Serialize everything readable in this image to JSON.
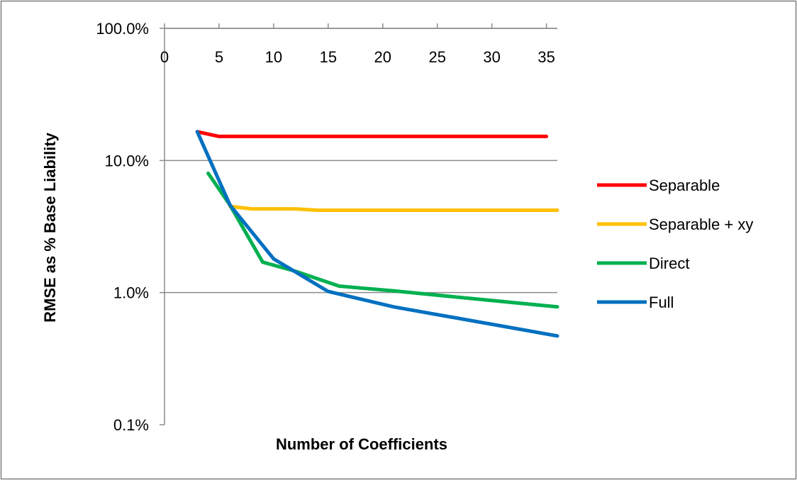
{
  "chart_data": {
    "type": "line",
    "title": "",
    "xlabel": "Number of Coefficients",
    "ylabel": "RMSE as % Base Liability",
    "xlim": [
      0,
      36
    ],
    "x_ticks": [
      0,
      5,
      10,
      15,
      20,
      25,
      30,
      35
    ],
    "x_tick_labels": [
      "0",
      "5",
      "10",
      "15",
      "20",
      "25",
      "30",
      "35"
    ],
    "x_axis_position": "top",
    "yscale": "log",
    "ylim": [
      0.1,
      100
    ],
    "y_ticks": [
      0.1,
      1,
      10,
      100
    ],
    "y_tick_labels": [
      "0.1%",
      "1.0%",
      "10.0%",
      "100.0%"
    ],
    "grid": "horizontal major",
    "legend_position": "right",
    "series": [
      {
        "name": "Separable",
        "color": "#ff0000",
        "points": [
          [
            3,
            16.5
          ],
          [
            5,
            15.2
          ],
          [
            35,
            15.2
          ]
        ]
      },
      {
        "name": "Separable + xy",
        "color": "#ffc000",
        "points": [
          [
            6,
            4.5
          ],
          [
            8,
            4.3
          ],
          [
            12,
            4.3
          ],
          [
            14,
            4.2
          ],
          [
            36,
            4.2
          ]
        ]
      },
      {
        "name": "Direct",
        "color": "#00b050",
        "points": [
          [
            4,
            8.0
          ],
          [
            6,
            4.6
          ],
          [
            9,
            1.7
          ],
          [
            12,
            1.45
          ],
          [
            16,
            1.12
          ],
          [
            21,
            1.03
          ],
          [
            36,
            0.78
          ]
        ]
      },
      {
        "name": "Full",
        "color": "#0070c0",
        "points": [
          [
            3,
            16.5
          ],
          [
            6,
            4.6
          ],
          [
            10,
            1.8
          ],
          [
            15,
            1.02
          ],
          [
            21,
            0.78
          ],
          [
            36,
            0.47
          ]
        ]
      }
    ]
  }
}
